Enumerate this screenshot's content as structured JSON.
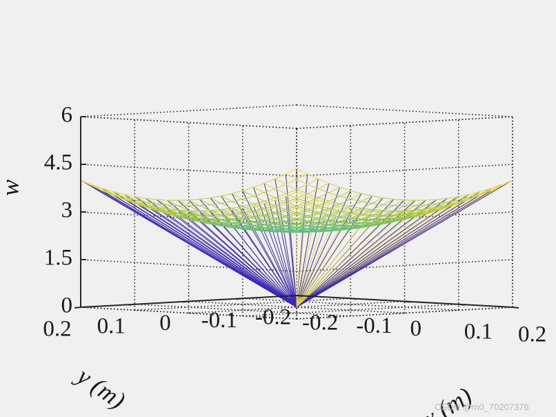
{
  "chart_data": {
    "type": "surface",
    "xlabel": "x (m)",
    "ylabel": "y (m)",
    "zlabel": "w",
    "x_ticks": [
      "-0.2",
      "-0.1",
      "0",
      "0.1",
      "0.2"
    ],
    "y_ticks": [
      "-0.2",
      "-0.1",
      "0",
      "0.1",
      "0.2"
    ],
    "z_ticks": [
      "0",
      "1.5",
      "3",
      "4.5",
      "6"
    ],
    "xlim": [
      -0.2,
      0.2
    ],
    "ylim": [
      -0.2,
      0.2
    ],
    "zlim": [
      0,
      6
    ],
    "grid": true,
    "box": true,
    "colormap": [
      "#3b2ab8",
      "#2f86d6",
      "#3fb79a",
      "#b7cb35",
      "#f2e23a"
    ],
    "surface": {
      "description_formula": "w = 2.38 + 20*(x^2 + y^2) on x,y in [-0.2,0.2], 21x21 mesh, with mesh edges collapsing to the base point",
      "mesh_points": 21,
      "center_value": 2.38,
      "corner_value": 4.0,
      "base_point": {
        "x": 0,
        "y": 0,
        "w": 0
      }
    }
  },
  "watermark": "CSDN @m0_70207376"
}
